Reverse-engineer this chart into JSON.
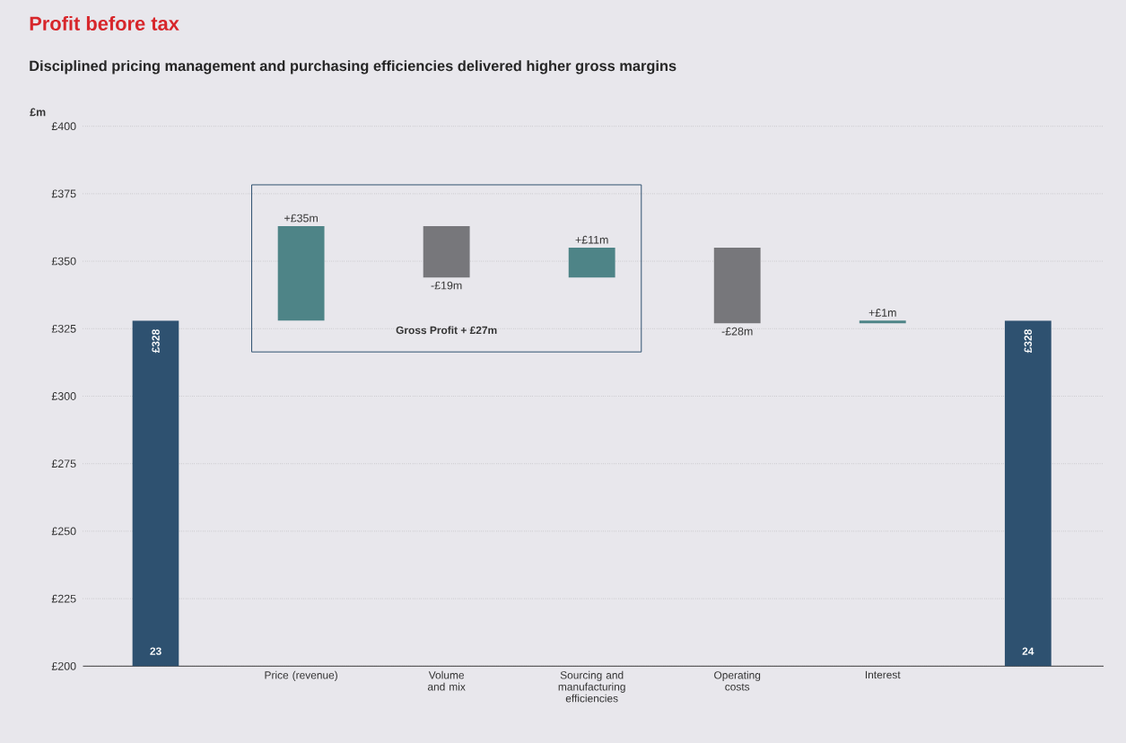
{
  "chart_data": {
    "type": "bar",
    "title": "Profit before tax",
    "subtitle": "Disciplined pricing management and purchasing efficiencies delivered higher gross margins",
    "ylabel": "£m",
    "categories": [
      "23",
      "Price (revenue)",
      "Volume and mix",
      "Sourcing and manufacturing efficiencies",
      "Operating costs",
      "Interest",
      "24"
    ],
    "values": [
      328,
      35,
      -19,
      11,
      -28,
      1,
      328
    ],
    "base": [
      null,
      328,
      363,
      344,
      355,
      327,
      null
    ],
    "colors": [
      "#2e5170",
      "#4e8487",
      "#77777b",
      "#4e8487",
      "#77777b",
      "#4e8487",
      "#2e5170"
    ],
    "value_labels": [
      "£328",
      "+£35m",
      "-£19m",
      "+£11m",
      "-£28m",
      "+£1m",
      "£328"
    ],
    "annotations": [
      "Gross Profit + £27m"
    ],
    "ylim": [
      200,
      400
    ],
    "yticks": [
      {
        "value": 200,
        "label": "£200"
      },
      {
        "value": 225,
        "label": "£225"
      },
      {
        "value": 250,
        "label": "£250"
      },
      {
        "value": 275,
        "label": "£275"
      },
      {
        "value": 300,
        "label": "£300"
      },
      {
        "value": 325,
        "label": "£325"
      },
      {
        "value": 350,
        "label": "£350"
      },
      {
        "value": 375,
        "label": "£375"
      },
      {
        "value": 400,
        "label": "£400"
      }
    ],
    "grid": "y"
  }
}
